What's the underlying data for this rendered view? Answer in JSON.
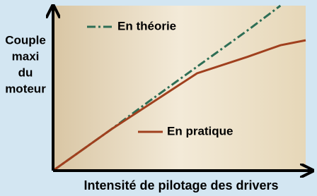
{
  "chart_data": {
    "type": "line",
    "xlabel": "Intensité de pilotage des drivers",
    "ylabel": [
      "Couple",
      "maxi",
      "du",
      "moteur"
    ],
    "x": [
      0,
      23,
      38,
      57,
      77,
      90,
      100
    ],
    "xlim": [
      0,
      100
    ],
    "ylim": [
      0,
      100
    ],
    "series": [
      {
        "name": "En théorie",
        "color": "#2e6e55",
        "dash": "dashdot",
        "values": [
          0,
          25,
          42,
          63,
          85,
          100,
          null
        ]
      },
      {
        "name": "En pratique",
        "color": "#a0401e",
        "dash": "solid",
        "values": [
          0,
          25,
          40,
          59,
          69,
          76,
          79
        ]
      }
    ]
  }
}
